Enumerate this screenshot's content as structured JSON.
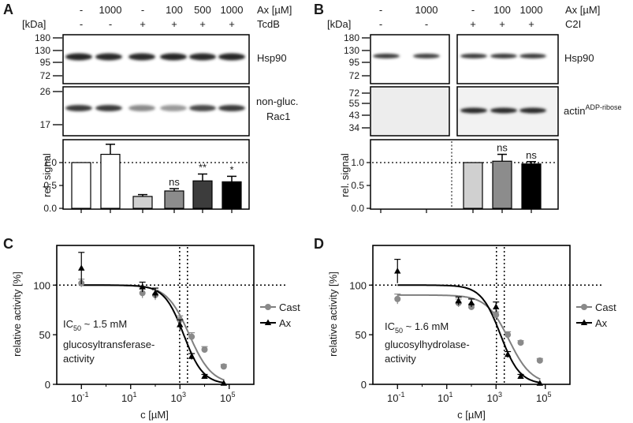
{
  "panels": {
    "A": {
      "label": "A",
      "kda_label": "[kDa]",
      "conc_label": "Ax [µM]",
      "treat_label": "TcdB",
      "concentrations": [
        "-",
        "1000",
        "-",
        "100",
        "500",
        "1000"
      ],
      "treatment": [
        "-",
        "-",
        "+",
        "+",
        "+",
        "+"
      ],
      "blot1_label": "Hsp90",
      "blot1_markers": [
        "180",
        "130",
        "95",
        "72"
      ],
      "blot2_label_line1": "non-gluc.",
      "blot2_label_line2": "Rac1",
      "blot2_markers": [
        "26",
        "17"
      ],
      "bar_ylabel": "rel. signal",
      "bar_yticks": [
        "0.0",
        "0.5",
        "1.0"
      ],
      "bar_values": [
        1.0,
        1.18,
        0.26,
        0.38,
        0.6,
        0.58
      ],
      "bar_errors": [
        0.0,
        0.22,
        0.04,
        0.05,
        0.15,
        0.12
      ],
      "bar_colors": [
        "#ffffff",
        "#ffffff",
        "#d0d0d0",
        "#8c8c8c",
        "#3c3c3c",
        "#000000"
      ],
      "significance": [
        "",
        "",
        "",
        "ns",
        "**",
        "*"
      ]
    },
    "B": {
      "label": "B",
      "kda_label": "[kDa]",
      "conc_label": "Ax [µM]",
      "treat_label": "C2I",
      "concentrations": [
        "-",
        "1000",
        "-",
        "100",
        "1000"
      ],
      "treatment": [
        "-",
        "-",
        "+",
        "+",
        "+"
      ],
      "blot1_label": "Hsp90",
      "blot1_markers": [
        "180",
        "130",
        "95",
        "72"
      ],
      "blot2_label_main": "actin",
      "blot2_label_sup": "ADP-ribose",
      "blot2_markers": [
        "72",
        "55",
        "43",
        "34"
      ],
      "bar_ylabel": "rel. signal",
      "bar_yticks": [
        "0.0",
        "0.5",
        "1.0"
      ],
      "bar_values": [
        1.0,
        1.03,
        0.97
      ],
      "bar_errors": [
        0.0,
        0.15,
        0.05
      ],
      "bar_colors": [
        "#d0d0d0",
        "#8c8c8c",
        "#000000"
      ],
      "significance": [
        "",
        "ns",
        "ns"
      ]
    },
    "C": {
      "label": "C",
      "ylabel": "relative activity [%]",
      "xlabel": "c [µM]",
      "yticks": [
        "0",
        "50",
        "100"
      ],
      "xticks": [
        {
          "base": "10",
          "exp": "-1"
        },
        {
          "base": "10",
          "exp": "1"
        },
        {
          "base": "10",
          "exp": "3"
        },
        {
          "base": "10",
          "exp": "5"
        }
      ],
      "ic50_text": "IC",
      "ic50_sub": "50",
      "ic50_value": " ~ 1.5 mM",
      "activity_line1": "glucosyltransferase-",
      "activity_line2": "activity",
      "legend": [
        "Cast",
        "Ax"
      ]
    },
    "D": {
      "label": "D",
      "ylabel": "relative activity [%]",
      "xlabel": "c [µM]",
      "yticks": [
        "0",
        "50",
        "100"
      ],
      "xticks": [
        {
          "base": "10",
          "exp": "-1"
        },
        {
          "base": "10",
          "exp": "1"
        },
        {
          "base": "10",
          "exp": "3"
        },
        {
          "base": "10",
          "exp": "5"
        }
      ],
      "ic50_text": "IC",
      "ic50_sub": "50",
      "ic50_value": " ~ 1.6 mM",
      "activity_line1": "glucosylhydrolase-",
      "activity_line2": "activity",
      "legend": [
        "Cast",
        "Ax"
      ]
    }
  },
  "chart_data": [
    {
      "type": "bar",
      "title": "A",
      "categories": [
        "- / -",
        "1000 / -",
        "- / +",
        "100 / +",
        "500 / +",
        "1000 / +"
      ],
      "values": [
        1.0,
        1.18,
        0.26,
        0.38,
        0.6,
        0.58
      ],
      "errors": [
        0.0,
        0.22,
        0.04,
        0.05,
        0.15,
        0.12
      ],
      "ylabel": "rel. signal",
      "ylim": [
        0,
        1.5
      ]
    },
    {
      "type": "bar",
      "title": "B",
      "categories": [
        "- / -",
        "1000 / -",
        "- / +",
        "100 / +",
        "1000 / +"
      ],
      "values": [
        null,
        null,
        1.0,
        1.03,
        0.97
      ],
      "errors": [
        null,
        null,
        0.0,
        0.15,
        0.05
      ],
      "ylabel": "rel. signal",
      "ylim": [
        0,
        1.5
      ]
    },
    {
      "type": "scatter",
      "title": "C",
      "xlabel": "c [µM]",
      "ylabel": "relative activity [%]",
      "xscale": "log",
      "xlim": [
        0.01,
        1000000
      ],
      "ylim": [
        0,
        140
      ],
      "series": [
        {
          "name": "Cast",
          "x": [
            0.1,
            30,
            100,
            1000,
            3000,
            10000,
            60000
          ],
          "y": [
            102,
            92,
            90,
            65,
            48,
            35,
            18
          ],
          "err": [
            4,
            5,
            5,
            4,
            4,
            3,
            2
          ]
        },
        {
          "name": "Ax",
          "x": [
            0.1,
            30,
            100,
            1000,
            3000,
            10000,
            60000
          ],
          "y": [
            117,
            98,
            92,
            60,
            28,
            8,
            1
          ],
          "err": [
            16,
            5,
            5,
            5,
            3,
            2,
            1
          ]
        }
      ],
      "ic50_mM": 1.5
    },
    {
      "type": "scatter",
      "title": "D",
      "xlabel": "c [µM]",
      "ylabel": "relative activity [%]",
      "xscale": "log",
      "xlim": [
        0.01,
        1000000
      ],
      "ylim": [
        0,
        140
      ],
      "series": [
        {
          "name": "Cast",
          "x": [
            0.1,
            30,
            100,
            1000,
            3000,
            10000,
            60000
          ],
          "y": [
            86,
            82,
            78,
            70,
            50,
            42,
            24
          ],
          "err": [
            5,
            4,
            3,
            3,
            3,
            2,
            2
          ]
        },
        {
          "name": "Ax",
          "x": [
            0.1,
            30,
            100,
            1000,
            3000,
            10000,
            60000
          ],
          "y": [
            114,
            84,
            82,
            78,
            30,
            8,
            1
          ],
          "err": [
            12,
            4,
            4,
            5,
            3,
            2,
            1
          ]
        }
      ],
      "ic50_mM": 1.6
    }
  ]
}
